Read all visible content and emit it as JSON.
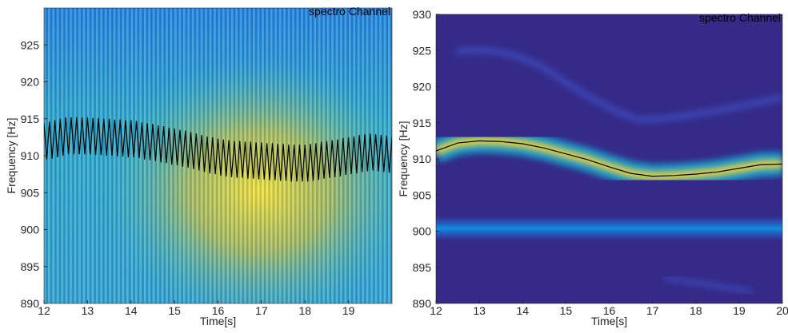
{
  "chart_data": [
    {
      "type": "spectrogram",
      "title": "spectro Channel",
      "xlabel": "Time[s]",
      "ylabel": "Frequency [Hz]",
      "xlim": [
        12,
        20
      ],
      "ylim": [
        890,
        930
      ],
      "xticks": [
        12,
        13,
        14,
        15,
        16,
        17,
        18,
        19
      ],
      "yticks": [
        890,
        895,
        900,
        905,
        910,
        915,
        920,
        925
      ],
      "series": [
        {
          "color": "#000000",
          "x": [
            12,
            12.0625,
            12.125,
            12.1875,
            12.25,
            12.3125,
            12.375,
            12.4375,
            12.5,
            12.5625,
            12.625,
            12.6875,
            12.75,
            12.8125,
            12.875,
            12.9375,
            13,
            13.0625,
            13.125,
            13.1875,
            13.25,
            13.3125,
            13.375,
            13.4375,
            13.5,
            13.5625,
            13.625,
            13.6875,
            13.75,
            13.8125,
            13.875,
            13.9375,
            14,
            14.0625,
            14.125,
            14.1875,
            14.25,
            14.3125,
            14.375,
            14.4375,
            14.5,
            14.5625,
            14.625,
            14.6875,
            14.75,
            14.8125,
            14.875,
            14.9375,
            15,
            15.0625,
            15.125,
            15.1875,
            15.25,
            15.3125,
            15.375,
            15.4375,
            15.5,
            15.5625,
            15.625,
            15.6875,
            15.75,
            15.8125,
            15.875,
            15.9375,
            16,
            16.0625,
            16.125,
            16.1875,
            16.25,
            16.3125,
            16.375,
            16.4375,
            16.5,
            16.5625,
            16.625,
            16.6875,
            16.75,
            16.8125,
            16.875,
            16.9375,
            17,
            17.0625,
            17.125,
            17.1875,
            17.25,
            17.3125,
            17.375,
            17.4375,
            17.5,
            17.5625,
            17.625,
            17.6875,
            17.75,
            17.8125,
            17.875,
            17.9375,
            18,
            18.0625,
            18.125,
            18.1875,
            18.25,
            18.3125,
            18.375,
            18.4375,
            18.5,
            18.5625,
            18.625,
            18.6875,
            18.75,
            18.8125,
            18.875,
            18.9375,
            19,
            19.0625,
            19.125,
            19.1875,
            19.25,
            19.3125,
            19.375,
            19.4375,
            19.5,
            19.5625,
            19.625,
            19.6875,
            19.75,
            19.8125,
            19.875,
            19.9375,
            20
          ],
          "values": [
            914.5,
            909.5,
            914.6,
            909.6,
            914.8,
            909.8,
            915.0,
            910.0,
            915.2,
            910.2,
            915.2,
            910.2,
            915.2,
            910.2,
            915.2,
            910.2,
            915.2,
            910.2,
            915.1,
            910.1,
            915.1,
            910.1,
            915.0,
            910.0,
            915.0,
            910.0,
            914.9,
            909.9,
            914.9,
            909.9,
            914.8,
            909.8,
            914.8,
            909.8,
            914.7,
            909.7,
            914.5,
            909.5,
            914.4,
            909.4,
            914.3,
            909.3,
            914.1,
            909.1,
            914.0,
            909.0,
            913.8,
            908.8,
            913.7,
            908.7,
            913.5,
            908.5,
            913.4,
            908.4,
            913.2,
            908.2,
            913.0,
            908.0,
            912.8,
            907.8,
            912.6,
            907.6,
            912.5,
            907.5,
            912.3,
            907.3,
            912.2,
            907.2,
            912.1,
            907.1,
            912.0,
            907.0,
            912.0,
            907.0,
            911.9,
            906.9,
            911.9,
            906.9,
            911.8,
            906.8,
            911.8,
            906.8,
            911.7,
            906.7,
            911.7,
            906.7,
            911.6,
            906.6,
            911.6,
            906.6,
            911.5,
            906.5,
            911.5,
            906.5,
            911.5,
            906.5,
            911.5,
            906.5,
            911.6,
            906.6,
            911.7,
            906.7,
            911.9,
            906.9,
            912.0,
            907.0,
            912.1,
            907.1,
            912.2,
            907.2,
            912.4,
            907.4,
            912.5,
            907.5,
            912.6,
            907.6,
            912.8,
            907.8,
            912.9,
            907.9,
            913.0,
            908.0,
            912.9,
            907.9,
            912.8,
            907.8,
            912.7,
            907.7,
            912.5
          ]
        }
      ]
    },
    {
      "type": "spectrogram",
      "title": "spectro Channel",
      "xlabel": "Time[s]",
      "ylabel": "Frequency [Hz]",
      "xlim": [
        12,
        20
      ],
      "ylim": [
        890,
        930
      ],
      "xticks": [
        12,
        13,
        14,
        15,
        16,
        17,
        18,
        19,
        20
      ],
      "yticks": [
        890,
        895,
        900,
        905,
        910,
        915,
        920,
        925,
        930
      ],
      "series": [
        {
          "color": "#000000",
          "x": [
            12,
            12.5,
            13,
            13.5,
            14,
            14.5,
            15,
            15.5,
            16,
            16.5,
            17,
            17.5,
            18,
            18.5,
            19,
            19.5,
            20
          ],
          "values": [
            911.1,
            912.2,
            912.5,
            912.4,
            912.1,
            911.5,
            910.7,
            909.9,
            908.9,
            908.0,
            907.6,
            907.7,
            907.9,
            908.2,
            908.7,
            909.2,
            909.3
          ]
        }
      ]
    }
  ]
}
